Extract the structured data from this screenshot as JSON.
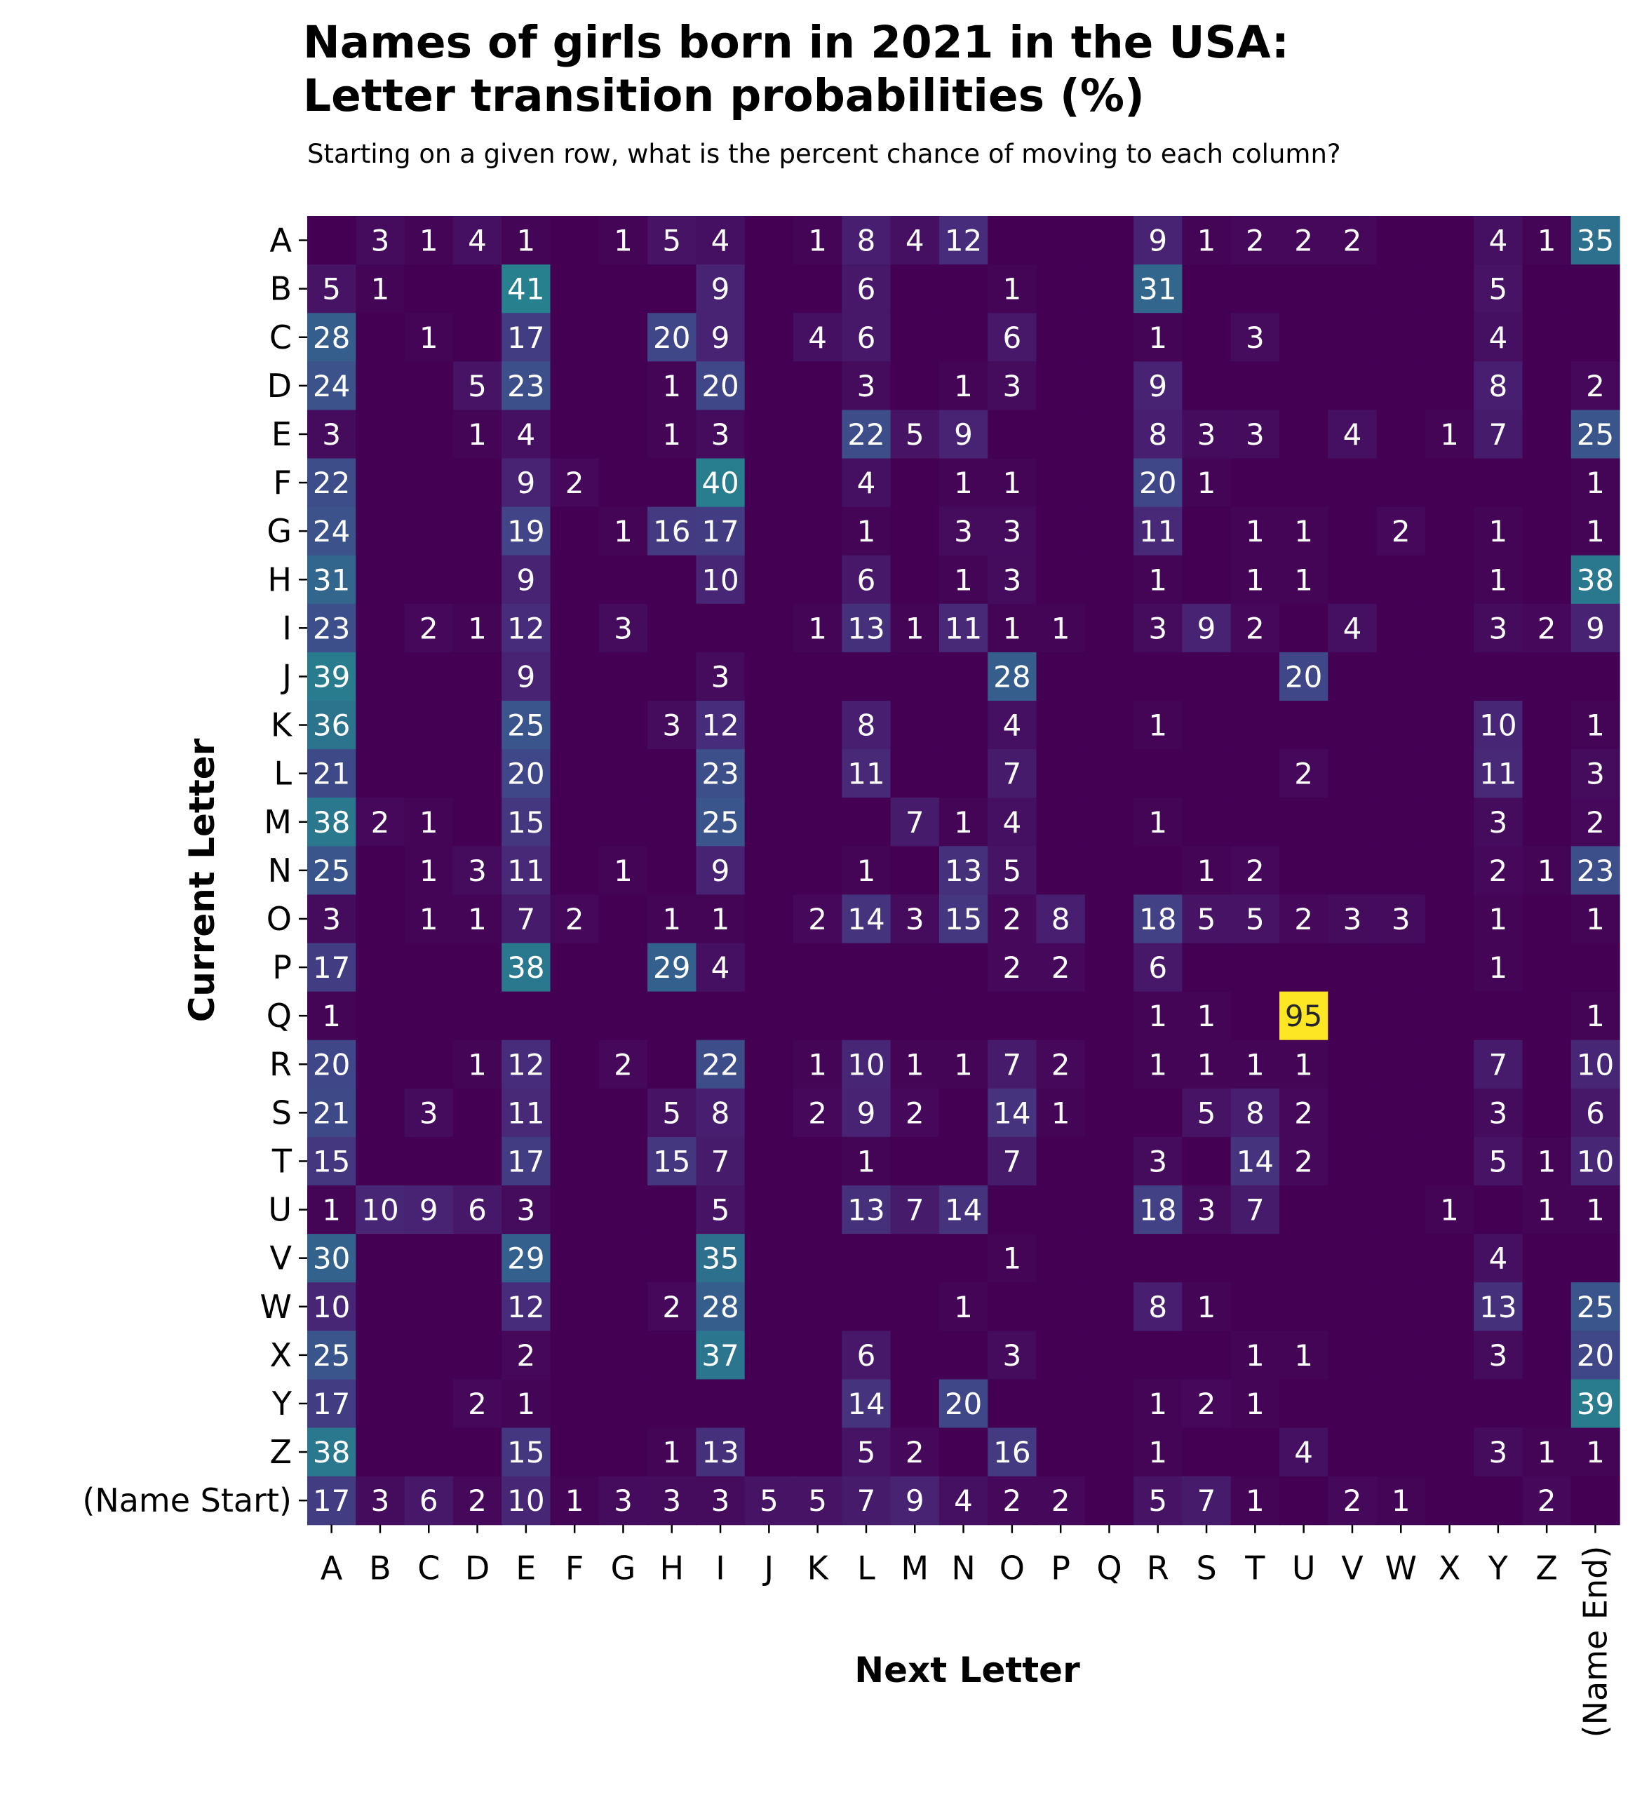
{
  "chart_data": {
    "type": "heatmap",
    "title_lines": [
      "Names of girls born in 2021 in the USA:",
      "Letter transition probabilities (%)"
    ],
    "subtitle": "Starting on a given row, what is the percent chance of moving to each column?",
    "xlabel": "Next Letter",
    "ylabel": "Current Letter",
    "x_categories": [
      "A",
      "B",
      "C",
      "D",
      "E",
      "F",
      "G",
      "H",
      "I",
      "J",
      "K",
      "L",
      "M",
      "N",
      "O",
      "P",
      "Q",
      "R",
      "S",
      "T",
      "U",
      "V",
      "W",
      "X",
      "Y",
      "Z",
      "(Name End)"
    ],
    "y_categories": [
      "A",
      "B",
      "C",
      "D",
      "E",
      "F",
      "G",
      "H",
      "I",
      "J",
      "K",
      "L",
      "M",
      "N",
      "O",
      "P",
      "Q",
      "R",
      "S",
      "T",
      "U",
      "V",
      "W",
      "X",
      "Y",
      "Z",
      "(Name Start)"
    ],
    "value_range": [
      0,
      95
    ],
    "colormap": "viridis",
    "annotation_colors": {
      "light": "#ffffff",
      "dark": "#262626"
    },
    "values": [
      [
        0,
        3,
        1,
        4,
        1,
        0,
        1,
        5,
        4,
        0,
        1,
        8,
        4,
        12,
        0,
        0,
        0,
        9,
        1,
        2,
        2,
        2,
        0,
        0,
        4,
        1,
        35
      ],
      [
        5,
        1,
        0,
        0,
        41,
        0,
        0,
        0,
        9,
        0,
        0,
        6,
        0,
        0,
        1,
        0,
        0,
        31,
        0,
        0,
        0,
        0,
        0,
        0,
        5,
        0,
        0
      ],
      [
        28,
        0,
        1,
        0,
        17,
        0,
        0,
        20,
        9,
        0,
        4,
        6,
        0,
        0,
        6,
        0,
        0,
        1,
        0,
        3,
        0,
        0,
        0,
        0,
        4,
        0,
        0
      ],
      [
        24,
        0,
        0,
        5,
        23,
        0,
        0,
        1,
        20,
        0,
        0,
        3,
        0,
        1,
        3,
        0,
        0,
        9,
        0,
        0,
        0,
        0,
        0,
        0,
        8,
        0,
        2
      ],
      [
        3,
        0,
        0,
        1,
        4,
        0,
        0,
        1,
        3,
        0,
        0,
        22,
        5,
        9,
        0,
        0,
        0,
        8,
        3,
        3,
        0,
        4,
        0,
        1,
        7,
        0,
        25
      ],
      [
        22,
        0,
        0,
        0,
        9,
        2,
        0,
        0,
        40,
        0,
        0,
        4,
        0,
        1,
        1,
        0,
        0,
        20,
        1,
        0,
        0,
        0,
        0,
        0,
        0,
        0,
        1
      ],
      [
        24,
        0,
        0,
        0,
        19,
        0,
        1,
        16,
        17,
        0,
        0,
        1,
        0,
        3,
        3,
        0,
        0,
        11,
        0,
        1,
        1,
        0,
        2,
        0,
        1,
        0,
        1
      ],
      [
        31,
        0,
        0,
        0,
        9,
        0,
        0,
        0,
        10,
        0,
        0,
        6,
        0,
        1,
        3,
        0,
        0,
        1,
        0,
        1,
        1,
        0,
        0,
        0,
        1,
        0,
        38
      ],
      [
        23,
        0,
        2,
        1,
        12,
        0,
        3,
        0,
        0,
        0,
        1,
        13,
        1,
        11,
        1,
        1,
        0,
        3,
        9,
        2,
        0,
        4,
        0,
        0,
        3,
        2,
        9
      ],
      [
        39,
        0,
        0,
        0,
        9,
        0,
        0,
        0,
        3,
        0,
        0,
        0,
        0,
        0,
        28,
        0,
        0,
        0,
        0,
        0,
        20,
        0,
        0,
        0,
        0,
        0,
        0
      ],
      [
        36,
        0,
        0,
        0,
        25,
        0,
        0,
        3,
        12,
        0,
        0,
        8,
        0,
        0,
        4,
        0,
        0,
        1,
        0,
        0,
        0,
        0,
        0,
        0,
        10,
        0,
        1
      ],
      [
        21,
        0,
        0,
        0,
        20,
        0,
        0,
        0,
        23,
        0,
        0,
        11,
        0,
        0,
        7,
        0,
        0,
        0,
        0,
        0,
        2,
        0,
        0,
        0,
        11,
        0,
        3
      ],
      [
        38,
        2,
        1,
        0,
        15,
        0,
        0,
        0,
        25,
        0,
        0,
        0,
        7,
        1,
        4,
        0,
        0,
        1,
        0,
        0,
        0,
        0,
        0,
        0,
        3,
        0,
        2
      ],
      [
        25,
        0,
        1,
        3,
        11,
        0,
        1,
        0,
        9,
        0,
        0,
        1,
        0,
        13,
        5,
        0,
        0,
        0,
        1,
        2,
        0,
        0,
        0,
        0,
        2,
        1,
        23
      ],
      [
        3,
        0,
        1,
        1,
        7,
        2,
        0,
        1,
        1,
        0,
        2,
        14,
        3,
        15,
        2,
        8,
        0,
        18,
        5,
        5,
        2,
        3,
        3,
        0,
        1,
        0,
        1
      ],
      [
        17,
        0,
        0,
        0,
        38,
        0,
        0,
        29,
        4,
        0,
        0,
        0,
        0,
        0,
        2,
        2,
        0,
        6,
        0,
        0,
        0,
        0,
        0,
        0,
        1,
        0,
        0
      ],
      [
        1,
        0,
        0,
        0,
        0,
        0,
        0,
        0,
        0,
        0,
        0,
        0,
        0,
        0,
        0,
        0,
        0,
        1,
        1,
        0,
        95,
        0,
        0,
        0,
        0,
        0,
        1
      ],
      [
        20,
        0,
        0,
        1,
        12,
        0,
        2,
        0,
        22,
        0,
        1,
        10,
        1,
        1,
        7,
        2,
        0,
        1,
        1,
        1,
        1,
        0,
        0,
        0,
        7,
        0,
        10
      ],
      [
        21,
        0,
        3,
        0,
        11,
        0,
        0,
        5,
        8,
        0,
        2,
        9,
        2,
        0,
        14,
        1,
        0,
        0,
        5,
        8,
        2,
        0,
        0,
        0,
        3,
        0,
        6
      ],
      [
        15,
        0,
        0,
        0,
        17,
        0,
        0,
        15,
        7,
        0,
        0,
        1,
        0,
        0,
        7,
        0,
        0,
        3,
        0,
        14,
        2,
        0,
        0,
        0,
        5,
        1,
        10
      ],
      [
        1,
        10,
        9,
        6,
        3,
        0,
        0,
        0,
        5,
        0,
        0,
        13,
        7,
        14,
        0,
        0,
        0,
        18,
        3,
        7,
        0,
        0,
        0,
        1,
        0,
        1,
        1
      ],
      [
        30,
        0,
        0,
        0,
        29,
        0,
        0,
        0,
        35,
        0,
        0,
        0,
        0,
        0,
        1,
        0,
        0,
        0,
        0,
        0,
        0,
        0,
        0,
        0,
        4,
        0,
        0
      ],
      [
        10,
        0,
        0,
        0,
        12,
        0,
        0,
        2,
        28,
        0,
        0,
        0,
        0,
        1,
        0,
        0,
        0,
        8,
        1,
        0,
        0,
        0,
        0,
        0,
        13,
        0,
        25
      ],
      [
        25,
        0,
        0,
        0,
        2,
        0,
        0,
        0,
        37,
        0,
        0,
        6,
        0,
        0,
        3,
        0,
        0,
        0,
        0,
        1,
        1,
        0,
        0,
        0,
        3,
        0,
        20
      ],
      [
        17,
        0,
        0,
        2,
        1,
        0,
        0,
        0,
        0,
        0,
        0,
        14,
        0,
        20,
        0,
        0,
        0,
        1,
        2,
        1,
        0,
        0,
        0,
        0,
        0,
        0,
        39
      ],
      [
        38,
        0,
        0,
        0,
        15,
        0,
        0,
        1,
        13,
        0,
        0,
        5,
        2,
        0,
        16,
        0,
        0,
        1,
        0,
        0,
        4,
        0,
        0,
        0,
        3,
        1,
        1
      ],
      [
        17,
        3,
        6,
        2,
        10,
        1,
        3,
        3,
        3,
        5,
        5,
        7,
        9,
        4,
        2,
        2,
        0,
        5,
        7,
        1,
        0,
        2,
        1,
        0,
        0,
        2,
        0
      ]
    ]
  }
}
